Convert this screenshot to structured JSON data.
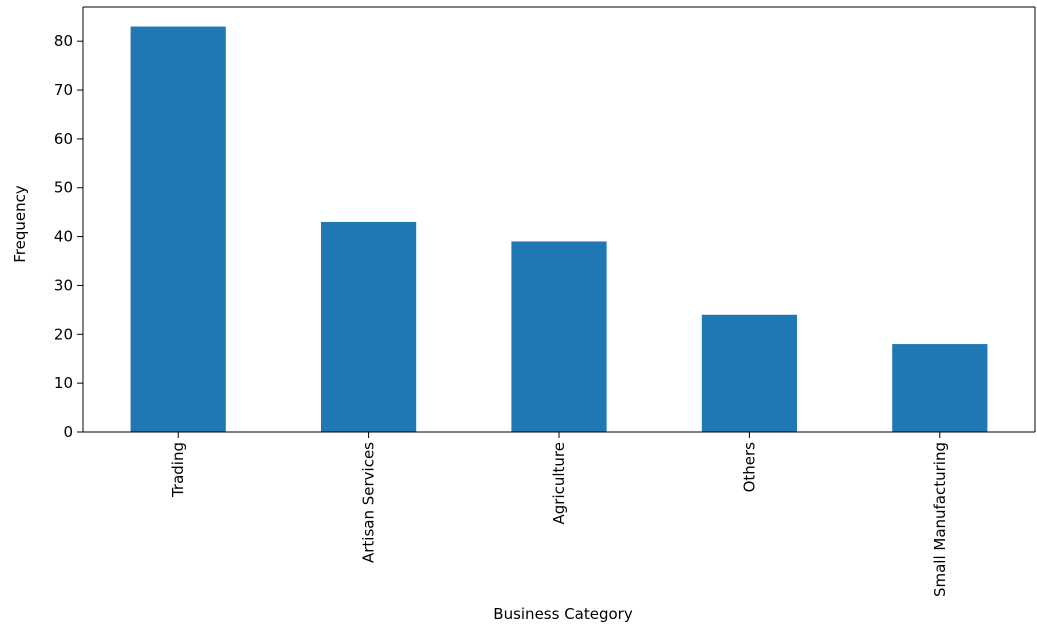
{
  "chart_data": {
    "type": "bar",
    "title": "",
    "xlabel": "Business Category",
    "ylabel": "Frequency",
    "categories": [
      "Trading",
      "Artisan Services",
      "Agriculture",
      "Others",
      "Small Manufacturing"
    ],
    "series": [
      {
        "values": [
          83,
          43,
          39,
          24,
          18
        ]
      }
    ],
    "ylim": [
      0,
      87
    ],
    "yticks": [
      "0",
      "10",
      "20",
      "30",
      "40",
      "50",
      "60",
      "70",
      "80"
    ],
    "grid": false,
    "legend": "none",
    "colors": {
      "bar": "#1f77b4",
      "axis": "#000000"
    }
  }
}
